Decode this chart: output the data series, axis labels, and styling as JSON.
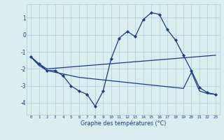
{
  "line1_x": [
    0,
    1,
    2,
    3,
    4,
    5,
    6,
    7,
    8,
    9,
    10,
    11,
    12,
    13,
    14,
    15,
    16,
    17,
    18,
    19,
    20,
    21,
    22,
    23
  ],
  "line1_y": [
    -1.3,
    -1.7,
    -2.1,
    -2.1,
    -2.4,
    -3.0,
    -3.3,
    -3.5,
    -4.2,
    -3.3,
    -1.4,
    -0.2,
    0.2,
    -0.1,
    0.9,
    1.3,
    1.2,
    0.3,
    -0.3,
    -1.2,
    -2.1,
    -3.1,
    -3.4,
    -3.5
  ],
  "line2_x": [
    0,
    1,
    2,
    23
  ],
  "line2_y": [
    -1.3,
    -1.7,
    -2.0,
    -1.2
  ],
  "line3_x": [
    0,
    1,
    2,
    3,
    4,
    5,
    6,
    7,
    8,
    9,
    10,
    11,
    12,
    13,
    14,
    15,
    16,
    17,
    18,
    19,
    20,
    21,
    22,
    23
  ],
  "line3_y": [
    -1.3,
    -1.8,
    -2.1,
    -2.2,
    -2.3,
    -2.4,
    -2.5,
    -2.55,
    -2.6,
    -2.65,
    -2.7,
    -2.75,
    -2.8,
    -2.85,
    -2.9,
    -2.95,
    -3.0,
    -3.05,
    -3.1,
    -3.15,
    -2.2,
    -3.3,
    -3.45,
    -3.5
  ],
  "line_color": "#1a3a8a",
  "bg_color": "#daeef0",
  "grid_color": "#aaccd4",
  "xlabel": "Graphe des températures (°C)",
  "xlim": [
    -0.5,
    23.5
  ],
  "ylim": [
    -4.7,
    1.8
  ],
  "yticks": [
    -4,
    -3,
    -2,
    -1,
    0,
    1
  ],
  "xticks": [
    0,
    1,
    2,
    3,
    4,
    5,
    6,
    7,
    8,
    9,
    10,
    11,
    12,
    13,
    14,
    15,
    16,
    17,
    18,
    19,
    20,
    21,
    22,
    23
  ]
}
